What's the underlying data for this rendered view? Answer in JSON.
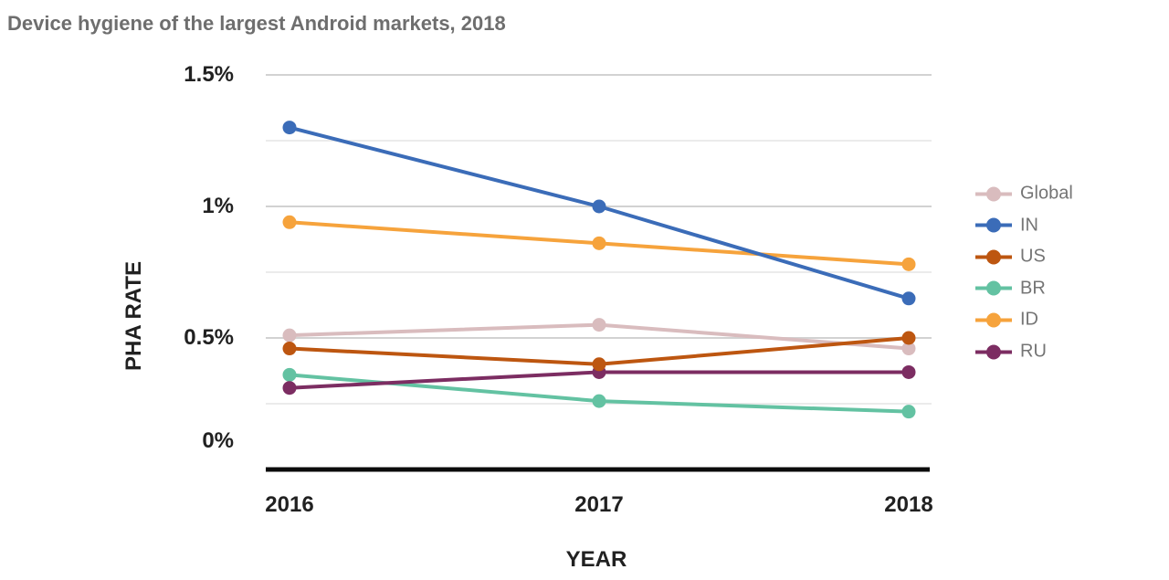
{
  "chart_data": {
    "type": "line",
    "title": "Device hygiene of the largest Android markets, 2018",
    "xlabel": "YEAR",
    "ylabel": "PHA RATE",
    "categories": [
      "2016",
      "2017",
      "2018"
    ],
    "series": [
      {
        "name": "Global",
        "color": "#d9bcbe",
        "values": [
          0.51,
          0.55,
          0.46
        ]
      },
      {
        "name": "IN",
        "color": "#3b6cb8",
        "values": [
          1.3,
          1.0,
          0.65
        ]
      },
      {
        "name": "US",
        "color": "#bd5610",
        "values": [
          0.46,
          0.4,
          0.5
        ]
      },
      {
        "name": "BR",
        "color": "#63c2a2",
        "values": [
          0.36,
          0.26,
          0.22
        ]
      },
      {
        "name": "ID",
        "color": "#f6a33c",
        "values": [
          0.94,
          0.86,
          0.78
        ]
      },
      {
        "name": "RU",
        "color": "#7c2d62",
        "values": [
          0.31,
          0.37,
          0.37
        ]
      }
    ],
    "ylim": [
      0,
      1.5
    ],
    "ytick_values": [
      0,
      0.5,
      1,
      1.5
    ],
    "ytick_labels": [
      "0%",
      "0.5%",
      "1%",
      "1.5%"
    ],
    "minor_step": 0.25,
    "grid": true,
    "legend_position": "right",
    "legend_labels": [
      "Global",
      "IN",
      "US",
      "BR",
      "ID",
      "RU"
    ],
    "colors": {
      "major_grid": "#d2d2d2",
      "minor_grid": "#ebebeb",
      "axis": "#0b0b0b",
      "title_text": "#6e6e6e",
      "tick_text": "#212121",
      "legend_text": "#757575",
      "background": "#ffffff"
    }
  }
}
